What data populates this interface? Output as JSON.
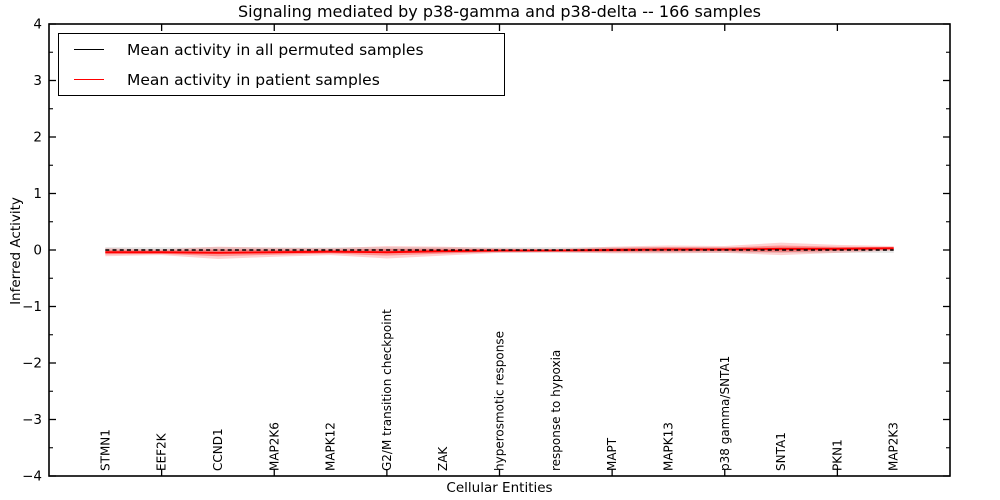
{
  "chart_data": {
    "type": "line",
    "title": "Signaling mediated by p38-gamma and p38-delta -- 166 samples",
    "xlabel": "Cellular Entities",
    "ylabel": "Inferred Activity",
    "ylim": [
      -4,
      4
    ],
    "xlim": [
      0,
      16
    ],
    "yticks": [
      4,
      3,
      2,
      1,
      0,
      -1,
      -2,
      -3,
      -4
    ],
    "ytick_labels": [
      "4",
      "3",
      "2",
      "1",
      "0",
      "−1",
      "−2",
      "−3",
      "−4"
    ],
    "ytick_minor_step": 0.5,
    "xticks": [
      2,
      4,
      6,
      8,
      10,
      12,
      14
    ],
    "grid": false,
    "legend_position": "upper left",
    "categories": [
      "STMN1",
      "EEF2K",
      "CCND1",
      "MAP2K6",
      "MAPK12",
      "G2/M transition checkpoint",
      "ZAK",
      "hyperosmotic response",
      "response to hypoxia",
      "MAPT",
      "MAPK13",
      "p38 gamma/SNTA1",
      "SNTA1",
      "PKN1",
      "MAP2K3"
    ],
    "category_x": [
      1,
      2,
      3,
      4,
      5,
      6,
      7,
      8,
      9,
      10,
      11,
      12,
      13,
      14,
      15
    ],
    "series": [
      {
        "name": "Mean activity in all permuted samples",
        "color": "#000000",
        "line_style": "dashed",
        "values": [
          0,
          0,
          0,
          0,
          0,
          0,
          0,
          0,
          0,
          0,
          0,
          0,
          0,
          0,
          0
        ],
        "band_halfwidth": [
          0.05,
          0.05,
          0.05,
          0.05,
          0.05,
          0.05,
          0.05,
          0.05,
          0.05,
          0.05,
          0.05,
          0.05,
          0.05,
          0.05,
          0.05
        ],
        "band_color": "#999999"
      },
      {
        "name": "Mean activity in patient samples",
        "color": "#ff0000",
        "line_style": "solid",
        "values": [
          -0.04,
          -0.04,
          -0.05,
          -0.04,
          -0.03,
          -0.04,
          -0.02,
          -0.01,
          -0.01,
          0.0,
          0.01,
          0.01,
          0.02,
          0.02,
          0.03
        ],
        "band_halfwidth": [
          0.07,
          0.05,
          0.11,
          0.08,
          0.06,
          0.11,
          0.08,
          0.04,
          0.03,
          0.06,
          0.07,
          0.06,
          0.11,
          0.07,
          0.04
        ],
        "band_color": "#ff0000"
      }
    ]
  }
}
